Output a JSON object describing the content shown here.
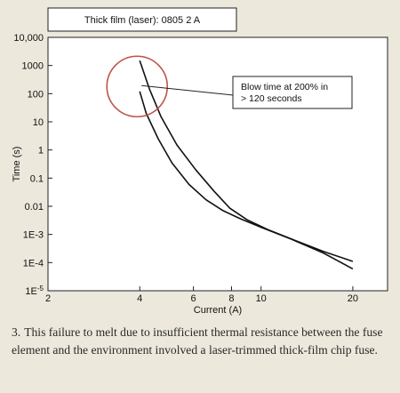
{
  "chart_data": {
    "type": "line",
    "title": "Thick film (laser): 0805 2 A",
    "xlabel": "Current (A)",
    "ylabel": "Time (s)",
    "x_scale": "log",
    "y_scale": "log",
    "xlim": [
      2,
      26
    ],
    "ylim": [
      1e-05,
      10000
    ],
    "x_ticks": [
      2,
      4,
      6,
      8,
      10,
      20
    ],
    "y_ticks": [
      {
        "value": 10000,
        "label": "10,000"
      },
      {
        "value": 1000,
        "label": "1000"
      },
      {
        "value": 100,
        "label": "100"
      },
      {
        "value": 10,
        "label": "10"
      },
      {
        "value": 1,
        "label": "1"
      },
      {
        "value": 0.1,
        "label": "0.1"
      },
      {
        "value": 0.01,
        "label": "0.01"
      },
      {
        "value": 0.001,
        "label": "1E-3"
      },
      {
        "value": 0.0001,
        "label": "1E-4"
      },
      {
        "value": 1e-05,
        "label": "1E-5"
      }
    ],
    "grid": false,
    "series": [
      {
        "x": [
          4,
          4.3,
          4.7,
          5.3,
          6.1,
          7.0,
          7.9,
          9.0,
          10.5,
          13.0,
          16.0,
          20.0
        ],
        "y": [
          1500,
          150,
          15,
          1.5,
          0.2,
          0.035,
          0.0085,
          0.0033,
          0.0015,
          0.0006,
          0.00025,
          0.00011
        ]
      },
      {
        "x": [
          4,
          4.2,
          4.6,
          5.1,
          5.8,
          6.6,
          7.5,
          8.6,
          10.0,
          12.5,
          16.0,
          20.0
        ],
        "y": [
          120,
          20,
          2.5,
          0.35,
          0.06,
          0.017,
          0.007,
          0.0035,
          0.0018,
          0.0007,
          0.00022,
          6e-05
        ]
      }
    ],
    "annotations": [
      {
        "text": "Blow time at 200% in > 120 seconds",
        "x": 4,
        "y": 180
      }
    ],
    "highlight_circle": {
      "x": 4,
      "y": 180,
      "color": "#c0524a"
    },
    "colors": {
      "line": "#111111",
      "frame": "#222222",
      "plot_bg": "#ffffff",
      "page_bg": "#ece8dc",
      "circle": "#c0524a"
    }
  },
  "caption": {
    "number": "3.",
    "text": "This failure to melt due to insufficient thermal resistance between the fuse element and the environment involved a laser-trimmed thick-film chip fuse."
  }
}
